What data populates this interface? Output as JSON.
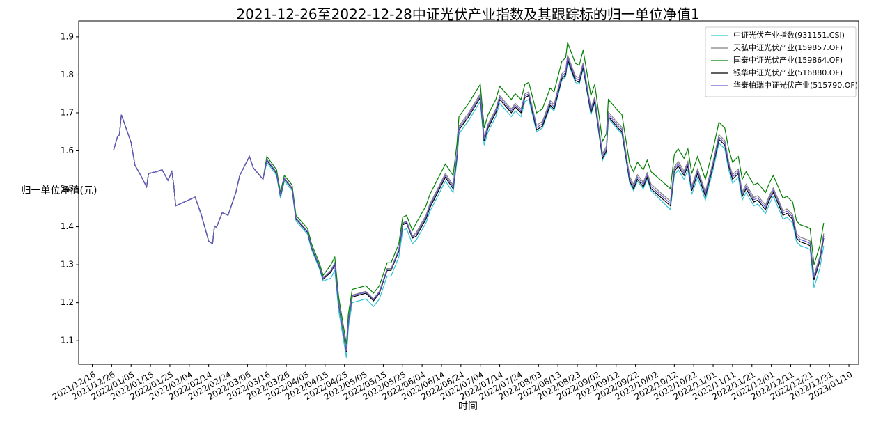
{
  "chart_data": {
    "type": "line",
    "title": "2021-12-26至2022-12-28中证光伏产业指数及其跟踪标的归一单位净值1",
    "x_label": "时间",
    "y_label": "归一单位净值(元)",
    "legend": "upper right",
    "xlim": [
      "2021/12/09",
      "2023/01/15"
    ],
    "xticks": [
      "2021/12/16",
      "2021/12/26",
      "2022/01/05",
      "2022/01/15",
      "2022/01/25",
      "2022/02/04",
      "2022/02/14",
      "2022/02/24",
      "2022/03/06",
      "2022/03/16",
      "2022/03/26",
      "2022/04/05",
      "2022/04/15",
      "2022/04/25",
      "2022/05/05",
      "2022/05/15",
      "2022/05/25",
      "2022/06/04",
      "2022/06/14",
      "2022/06/24",
      "2022/07/04",
      "2022/07/14",
      "2022/07/24",
      "2022/08/03",
      "2022/08/13",
      "2022/08/23",
      "2022/09/02",
      "2022/09/12",
      "2022/09/22",
      "2022/10/02",
      "2022/10/12",
      "2022/10/22",
      "2022/11/01",
      "2022/11/11",
      "2022/11/21",
      "2022/12/01",
      "2022/12/11",
      "2022/12/21",
      "2022/12/31",
      "2023/01/10"
    ],
    "ylim": [
      1.038,
      1.942
    ],
    "yticks": [
      1.1,
      1.2,
      1.3,
      1.4,
      1.5,
      1.6,
      1.7,
      1.8,
      1.9
    ],
    "x": [
      "2021/12/27",
      "2021/12/29",
      "2021/12/30",
      "2021/12/31",
      "2022/01/05",
      "2022/01/07",
      "2022/01/10",
      "2022/01/13",
      "2022/01/14",
      "2022/01/18",
      "2022/01/21",
      "2022/01/24",
      "2022/01/26",
      "2022/01/27",
      "2022/01/28",
      "2022/02/07",
      "2022/02/10",
      "2022/02/14",
      "2022/02/16",
      "2022/02/17",
      "2022/02/18",
      "2022/02/21",
      "2022/02/24",
      "2022/02/28",
      "2022/03/02",
      "2022/03/07",
      "2022/03/09",
      "2022/03/14",
      "2022/03/16",
      "2022/03/21",
      "2022/03/23",
      "2022/03/25",
      "2022/03/29",
      "2022/03/31",
      "2022/04/06",
      "2022/04/08",
      "2022/04/12",
      "2022/04/14",
      "2022/04/18",
      "2022/04/20",
      "2022/04/22",
      "2022/04/26",
      "2022/04/27",
      "2022/04/29",
      "2022/05/06",
      "2022/05/10",
      "2022/05/13",
      "2022/05/17",
      "2022/05/19",
      "2022/05/23",
      "2022/05/25",
      "2022/05/27",
      "2022/05/30",
      "2022/06/01",
      "2022/06/06",
      "2022/06/08",
      "2022/06/13",
      "2022/06/16",
      "2022/06/20",
      "2022/06/22",
      "2022/06/23",
      "2022/06/28",
      "2022/07/04",
      "2022/07/06",
      "2022/07/08",
      "2022/07/12",
      "2022/07/14",
      "2022/07/20",
      "2022/07/22",
      "2022/07/25",
      "2022/07/27",
      "2022/07/29",
      "2022/08/02",
      "2022/08/05",
      "2022/08/09",
      "2022/08/11",
      "2022/08/15",
      "2022/08/17",
      "2022/08/18",
      "2022/08/22",
      "2022/08/24",
      "2022/08/26",
      "2022/08/30",
      "2022/09/01",
      "2022/09/05",
      "2022/09/07",
      "2022/09/08",
      "2022/09/13",
      "2022/09/15",
      "2022/09/19",
      "2022/09/21",
      "2022/09/23",
      "2022/09/26",
      "2022/09/28",
      "2022/09/30",
      "2022/10/10",
      "2022/10/12",
      "2022/10/14",
      "2022/10/17",
      "2022/10/19",
      "2022/10/21",
      "2022/10/24",
      "2022/10/26",
      "2022/10/28",
      "2022/11/01",
      "2022/11/04",
      "2022/11/07",
      "2022/11/09",
      "2022/11/11",
      "2022/11/14",
      "2022/11/16",
      "2022/11/18",
      "2022/11/22",
      "2022/11/24",
      "2022/11/28",
      "2022/11/30",
      "2022/12/02",
      "2022/12/05",
      "2022/12/07",
      "2022/12/09",
      "2022/12/12",
      "2022/12/14",
      "2022/12/16",
      "2022/12/19",
      "2022/12/21",
      "2022/12/23",
      "2022/12/26",
      "2022/12/28"
    ],
    "series": [
      {
        "name": "中证光伏产业指数(931151.CSI)",
        "color": "#2ec4d6",
        "values": [
          1.602,
          1.637,
          1.642,
          1.695,
          1.622,
          1.562,
          1.535,
          1.505,
          1.54,
          1.545,
          1.55,
          1.522,
          1.545,
          1.51,
          1.455,
          1.478,
          1.435,
          1.362,
          1.355,
          1.402,
          1.398,
          1.437,
          1.43,
          1.49,
          1.535,
          1.585,
          1.555,
          1.525,
          1.57,
          1.535,
          1.475,
          1.52,
          1.495,
          1.415,
          1.38,
          1.34,
          1.29,
          1.257,
          1.265,
          1.285,
          1.18,
          1.055,
          1.135,
          1.2,
          1.21,
          1.19,
          1.21,
          1.27,
          1.27,
          1.32,
          1.39,
          1.395,
          1.355,
          1.365,
          1.41,
          1.44,
          1.49,
          1.52,
          1.49,
          1.575,
          1.645,
          1.68,
          1.73,
          1.615,
          1.65,
          1.69,
          1.725,
          1.69,
          1.705,
          1.69,
          1.73,
          1.735,
          1.65,
          1.66,
          1.715,
          1.705,
          1.785,
          1.795,
          1.835,
          1.78,
          1.775,
          1.815,
          1.695,
          1.725,
          1.575,
          1.595,
          1.685,
          1.655,
          1.645,
          1.515,
          1.495,
          1.52,
          1.5,
          1.525,
          1.495,
          1.445,
          1.535,
          1.55,
          1.525,
          1.55,
          1.485,
          1.53,
          1.5,
          1.47,
          1.55,
          1.62,
          1.605,
          1.55,
          1.515,
          1.53,
          1.47,
          1.49,
          1.455,
          1.46,
          1.435,
          1.46,
          1.48,
          1.445,
          1.42,
          1.425,
          1.41,
          1.36,
          1.35,
          1.345,
          1.34,
          1.24,
          1.29,
          1.35
        ]
      },
      {
        "name": "天弘中证光伏产业(159857.OF)",
        "color": "#808080",
        "values": [
          1.602,
          1.637,
          1.642,
          1.695,
          1.622,
          1.562,
          1.535,
          1.505,
          1.54,
          1.545,
          1.55,
          1.522,
          1.545,
          1.51,
          1.455,
          1.478,
          1.435,
          1.362,
          1.355,
          1.402,
          1.398,
          1.437,
          1.43,
          1.49,
          1.535,
          1.585,
          1.555,
          1.525,
          1.578,
          1.543,
          1.483,
          1.528,
          1.503,
          1.423,
          1.388,
          1.348,
          1.298,
          1.265,
          1.285,
          1.305,
          1.2,
          1.075,
          1.155,
          1.22,
          1.23,
          1.21,
          1.23,
          1.29,
          1.29,
          1.34,
          1.41,
          1.415,
          1.375,
          1.385,
          1.43,
          1.46,
          1.51,
          1.54,
          1.51,
          1.595,
          1.665,
          1.7,
          1.75,
          1.635,
          1.67,
          1.71,
          1.745,
          1.71,
          1.725,
          1.71,
          1.75,
          1.755,
          1.667,
          1.677,
          1.732,
          1.722,
          1.802,
          1.812,
          1.852,
          1.797,
          1.792,
          1.832,
          1.712,
          1.742,
          1.592,
          1.612,
          1.702,
          1.672,
          1.662,
          1.532,
          1.512,
          1.537,
          1.517,
          1.542,
          1.512,
          1.467,
          1.557,
          1.572,
          1.547,
          1.572,
          1.507,
          1.552,
          1.522,
          1.492,
          1.572,
          1.642,
          1.627,
          1.572,
          1.537,
          1.552,
          1.492,
          1.512,
          1.477,
          1.482,
          1.457,
          1.482,
          1.502,
          1.467,
          1.442,
          1.447,
          1.432,
          1.382,
          1.372,
          1.367,
          1.362,
          1.272,
          1.322,
          1.382
        ]
      },
      {
        "name": "国泰中证光伏产业(159864.OF)",
        "color": "#008000",
        "values": [
          1.602,
          1.637,
          1.642,
          1.695,
          1.622,
          1.562,
          1.535,
          1.505,
          1.54,
          1.545,
          1.55,
          1.522,
          1.545,
          1.51,
          1.455,
          1.478,
          1.435,
          1.362,
          1.355,
          1.402,
          1.398,
          1.437,
          1.43,
          1.49,
          1.535,
          1.585,
          1.555,
          1.525,
          1.585,
          1.55,
          1.49,
          1.535,
          1.51,
          1.43,
          1.395,
          1.355,
          1.305,
          1.272,
          1.3,
          1.32,
          1.215,
          1.09,
          1.17,
          1.235,
          1.245,
          1.225,
          1.245,
          1.305,
          1.305,
          1.355,
          1.425,
          1.43,
          1.39,
          1.41,
          1.455,
          1.485,
          1.535,
          1.565,
          1.535,
          1.62,
          1.69,
          1.725,
          1.775,
          1.66,
          1.695,
          1.735,
          1.77,
          1.735,
          1.75,
          1.735,
          1.775,
          1.78,
          1.7,
          1.71,
          1.765,
          1.755,
          1.835,
          1.845,
          1.885,
          1.83,
          1.825,
          1.865,
          1.745,
          1.775,
          1.625,
          1.645,
          1.735,
          1.705,
          1.695,
          1.565,
          1.545,
          1.57,
          1.55,
          1.575,
          1.545,
          1.5,
          1.59,
          1.605,
          1.58,
          1.605,
          1.54,
          1.585,
          1.555,
          1.525,
          1.605,
          1.675,
          1.66,
          1.605,
          1.57,
          1.585,
          1.525,
          1.545,
          1.51,
          1.515,
          1.49,
          1.515,
          1.535,
          1.5,
          1.475,
          1.48,
          1.465,
          1.415,
          1.405,
          1.4,
          1.395,
          1.3,
          1.35,
          1.41
        ]
      },
      {
        "name": "银华中证光伏产业(516880.OF)",
        "color": "#000000",
        "values": [
          1.602,
          1.637,
          1.642,
          1.695,
          1.622,
          1.562,
          1.535,
          1.505,
          1.54,
          1.545,
          1.55,
          1.522,
          1.545,
          1.51,
          1.455,
          1.478,
          1.435,
          1.362,
          1.355,
          1.402,
          1.398,
          1.437,
          1.43,
          1.49,
          1.535,
          1.585,
          1.555,
          1.525,
          1.575,
          1.54,
          1.48,
          1.525,
          1.5,
          1.42,
          1.385,
          1.345,
          1.295,
          1.262,
          1.28,
          1.3,
          1.195,
          1.07,
          1.15,
          1.215,
          1.225,
          1.205,
          1.225,
          1.285,
          1.285,
          1.335,
          1.405,
          1.41,
          1.37,
          1.375,
          1.42,
          1.45,
          1.5,
          1.53,
          1.5,
          1.585,
          1.655,
          1.69,
          1.74,
          1.625,
          1.66,
          1.7,
          1.735,
          1.7,
          1.715,
          1.7,
          1.74,
          1.745,
          1.655,
          1.665,
          1.72,
          1.71,
          1.79,
          1.8,
          1.84,
          1.785,
          1.78,
          1.82,
          1.7,
          1.73,
          1.58,
          1.6,
          1.69,
          1.66,
          1.65,
          1.52,
          1.5,
          1.525,
          1.505,
          1.53,
          1.5,
          1.455,
          1.545,
          1.56,
          1.535,
          1.56,
          1.495,
          1.54,
          1.51,
          1.48,
          1.56,
          1.63,
          1.615,
          1.56,
          1.525,
          1.54,
          1.48,
          1.5,
          1.465,
          1.47,
          1.445,
          1.47,
          1.49,
          1.455,
          1.43,
          1.435,
          1.42,
          1.37,
          1.36,
          1.355,
          1.35,
          1.26,
          1.31,
          1.37
        ]
      },
      {
        "name": "华泰柏瑞中证光伏产业(515790.OF)",
        "color": "#6a5acd",
        "values": [
          1.602,
          1.637,
          1.642,
          1.695,
          1.622,
          1.562,
          1.535,
          1.505,
          1.54,
          1.545,
          1.55,
          1.522,
          1.545,
          1.51,
          1.455,
          1.478,
          1.435,
          1.362,
          1.355,
          1.402,
          1.398,
          1.437,
          1.43,
          1.49,
          1.535,
          1.585,
          1.555,
          1.525,
          1.577,
          1.542,
          1.482,
          1.527,
          1.502,
          1.422,
          1.387,
          1.347,
          1.297,
          1.264,
          1.283,
          1.303,
          1.198,
          1.073,
          1.153,
          1.218,
          1.228,
          1.208,
          1.228,
          1.288,
          1.288,
          1.338,
          1.408,
          1.413,
          1.373,
          1.38,
          1.425,
          1.455,
          1.505,
          1.535,
          1.505,
          1.59,
          1.66,
          1.695,
          1.745,
          1.63,
          1.665,
          1.705,
          1.74,
          1.705,
          1.72,
          1.705,
          1.745,
          1.75,
          1.661,
          1.671,
          1.726,
          1.716,
          1.796,
          1.806,
          1.846,
          1.791,
          1.786,
          1.826,
          1.706,
          1.736,
          1.586,
          1.606,
          1.696,
          1.666,
          1.656,
          1.526,
          1.506,
          1.531,
          1.511,
          1.536,
          1.506,
          1.461,
          1.551,
          1.566,
          1.541,
          1.566,
          1.501,
          1.546,
          1.516,
          1.486,
          1.566,
          1.636,
          1.621,
          1.566,
          1.531,
          1.546,
          1.486,
          1.506,
          1.471,
          1.476,
          1.451,
          1.476,
          1.496,
          1.461,
          1.436,
          1.441,
          1.426,
          1.376,
          1.366,
          1.361,
          1.356,
          1.266,
          1.316,
          1.376
        ]
      }
    ]
  }
}
